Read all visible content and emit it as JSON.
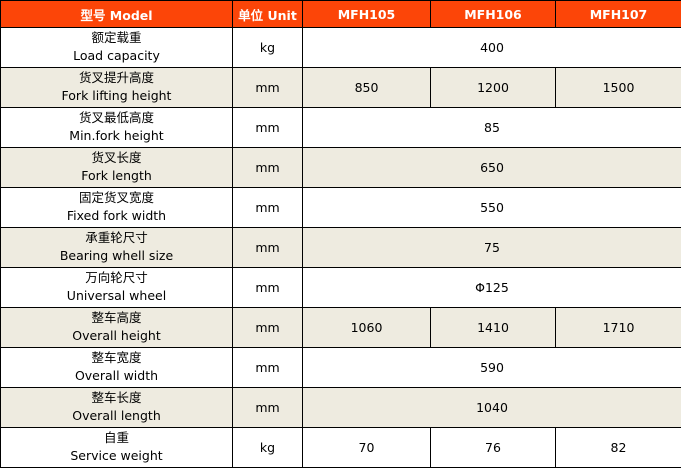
{
  "colors": {
    "header": "#fc4508",
    "alt_row": "#eeebe0"
  },
  "header": [
    "型号 Model",
    "单位 Unit",
    "MFH105",
    "MFH106",
    "MFH107"
  ],
  "rows": [
    {
      "zh": "额定载重",
      "en": "Load capacity",
      "unit": "kg",
      "values": [
        "400"
      ]
    },
    {
      "zh": "货叉提升高度",
      "en": "Fork lifting height",
      "unit": "mm",
      "values": [
        "850",
        "1200",
        "1500"
      ]
    },
    {
      "zh": "货叉最低高度",
      "en": "Min.fork  height",
      "unit": "mm",
      "values": [
        "85"
      ]
    },
    {
      "zh": "货叉长度",
      "en": "Fork length",
      "unit": "mm",
      "values": [
        "650"
      ]
    },
    {
      "zh": "固定货叉宽度",
      "en": "Fixed fork width",
      "unit": "mm",
      "values": [
        "550"
      ]
    },
    {
      "zh": "承重轮尺寸",
      "en": "Bearing whell size",
      "unit": "mm",
      "values": [
        "75"
      ]
    },
    {
      "zh": "万向轮尺寸",
      "en": "Universal wheel",
      "unit": "mm",
      "values": [
        "Φ125"
      ]
    },
    {
      "zh": "整车高度",
      "en": "Overall height",
      "unit": "mm",
      "values": [
        "1060",
        "1410",
        "1710"
      ]
    },
    {
      "zh": "整车宽度",
      "en": "Overall width",
      "unit": "mm",
      "values": [
        "590"
      ]
    },
    {
      "zh": "整车长度",
      "en": "Overall length",
      "unit": "mm",
      "values": [
        "1040"
      ]
    },
    {
      "zh": "自重",
      "en": "Service weight",
      "unit": "kg",
      "values": [
        "70",
        "76",
        "82"
      ]
    }
  ]
}
